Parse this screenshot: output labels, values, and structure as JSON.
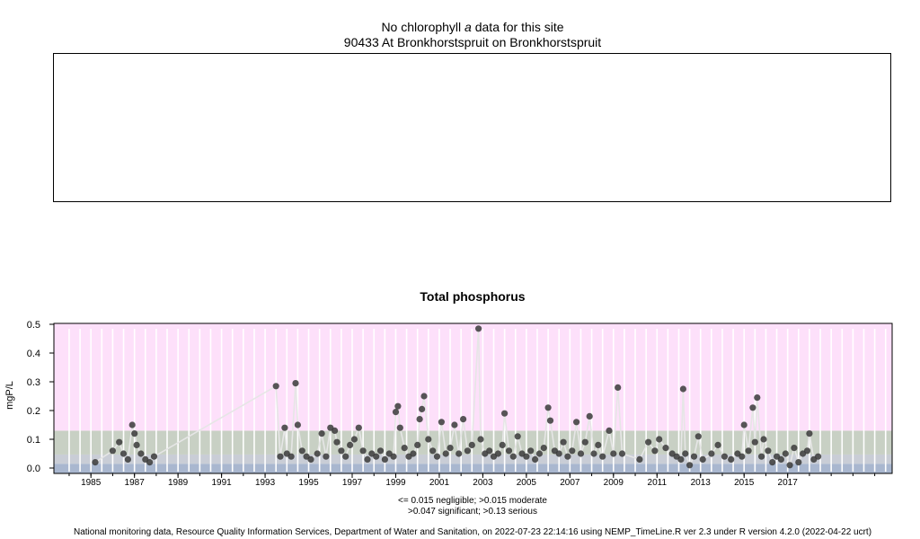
{
  "header": {
    "message_prefix": "No chlorophyll",
    "message_italic": "a",
    "message_suffix": " data for this site",
    "site": "90433 At Bronkhorstspruit on Bronkhorstspruit"
  },
  "chart_data": {
    "type": "scatter",
    "title": "Total phosphorus",
    "ylabel": "mgP/L",
    "xlabel": "",
    "ylim": [
      0,
      0.5
    ],
    "xlim": [
      1983.3,
      2021.8
    ],
    "yticks": [
      "0.0",
      "0.1",
      "0.2",
      "0.3",
      "0.4",
      "0.5"
    ],
    "xticks": [
      "1985",
      "1987",
      "1989",
      "1991",
      "1993",
      "1995",
      "1997",
      "1999",
      "2001",
      "2003",
      "2005",
      "2007",
      "2009",
      "2011",
      "2013",
      "2015",
      "2017"
    ],
    "bands": [
      {
        "name": "negligible",
        "from": 0,
        "to": 0.015,
        "color": "#a9b7cf"
      },
      {
        "name": "moderate",
        "from": 0.015,
        "to": 0.047,
        "color": "#c9cdd6"
      },
      {
        "name": "significant",
        "from": 0.047,
        "to": 0.13,
        "color": "#c8d0c4"
      },
      {
        "name": "serious",
        "from": 0.13,
        "to": 0.5,
        "color": "#fde0fa"
      }
    ],
    "series": [
      {
        "points": [
          [
            1985.2,
            0.02
          ],
          [
            1986.0,
            0.06
          ],
          [
            1986.3,
            0.09
          ],
          [
            1986.5,
            0.05
          ],
          [
            1986.7,
            0.03
          ],
          [
            1986.9,
            0.15
          ],
          [
            1987.0,
            0.12
          ],
          [
            1987.1,
            0.08
          ],
          [
            1987.3,
            0.05
          ],
          [
            1987.5,
            0.03
          ],
          [
            1987.7,
            0.02
          ],
          [
            1987.9,
            0.04
          ],
          [
            1993.5,
            0.285
          ],
          [
            1993.7,
            0.04
          ],
          [
            1993.9,
            0.14
          ],
          [
            1994.0,
            0.05
          ],
          [
            1994.2,
            0.04
          ],
          [
            1994.4,
            0.295
          ],
          [
            1994.5,
            0.15
          ],
          [
            1994.7,
            0.06
          ],
          [
            1994.9,
            0.04
          ],
          [
            1995.1,
            0.03
          ],
          [
            1995.4,
            0.05
          ],
          [
            1995.6,
            0.12
          ],
          [
            1995.8,
            0.04
          ],
          [
            1996.0,
            0.14
          ],
          [
            1996.2,
            0.13
          ],
          [
            1996.3,
            0.09
          ],
          [
            1996.5,
            0.06
          ],
          [
            1996.7,
            0.04
          ],
          [
            1996.9,
            0.08
          ],
          [
            1997.1,
            0.1
          ],
          [
            1997.3,
            0.14
          ],
          [
            1997.5,
            0.06
          ],
          [
            1997.7,
            0.03
          ],
          [
            1997.9,
            0.05
          ],
          [
            1998.1,
            0.04
          ],
          [
            1998.3,
            0.06
          ],
          [
            1998.5,
            0.03
          ],
          [
            1998.7,
            0.05
          ],
          [
            1998.9,
            0.04
          ],
          [
            1999.0,
            0.195
          ],
          [
            1999.1,
            0.215
          ],
          [
            1999.2,
            0.14
          ],
          [
            1999.4,
            0.07
          ],
          [
            1999.6,
            0.04
          ],
          [
            1999.8,
            0.05
          ],
          [
            2000.0,
            0.08
          ],
          [
            2000.1,
            0.17
          ],
          [
            2000.2,
            0.205
          ],
          [
            2000.3,
            0.25
          ],
          [
            2000.5,
            0.1
          ],
          [
            2000.7,
            0.06
          ],
          [
            2000.9,
            0.04
          ],
          [
            2001.1,
            0.16
          ],
          [
            2001.3,
            0.05
          ],
          [
            2001.5,
            0.07
          ],
          [
            2001.7,
            0.15
          ],
          [
            2001.9,
            0.05
          ],
          [
            2002.1,
            0.17
          ],
          [
            2002.3,
            0.06
          ],
          [
            2002.5,
            0.08
          ],
          [
            2002.8,
            0.485
          ],
          [
            2002.9,
            0.1
          ],
          [
            2003.1,
            0.05
          ],
          [
            2003.3,
            0.06
          ],
          [
            2003.5,
            0.04
          ],
          [
            2003.7,
            0.05
          ],
          [
            2003.9,
            0.08
          ],
          [
            2004.0,
            0.19
          ],
          [
            2004.2,
            0.06
          ],
          [
            2004.4,
            0.04
          ],
          [
            2004.6,
            0.11
          ],
          [
            2004.8,
            0.05
          ],
          [
            2005.0,
            0.04
          ],
          [
            2005.2,
            0.06
          ],
          [
            2005.4,
            0.03
          ],
          [
            2005.6,
            0.05
          ],
          [
            2005.8,
            0.07
          ],
          [
            2006.0,
            0.21
          ],
          [
            2006.1,
            0.165
          ],
          [
            2006.3,
            0.06
          ],
          [
            2006.5,
            0.05
          ],
          [
            2006.7,
            0.09
          ],
          [
            2006.9,
            0.04
          ],
          [
            2007.1,
            0.06
          ],
          [
            2007.3,
            0.16
          ],
          [
            2007.5,
            0.05
          ],
          [
            2007.7,
            0.09
          ],
          [
            2007.9,
            0.18
          ],
          [
            2008.1,
            0.05
          ],
          [
            2008.3,
            0.08
          ],
          [
            2008.5,
            0.04
          ],
          [
            2008.8,
            0.13
          ],
          [
            2009.0,
            0.05
          ],
          [
            2009.2,
            0.28
          ],
          [
            2009.4,
            0.05
          ],
          [
            2010.2,
            0.03
          ],
          [
            2010.6,
            0.09
          ],
          [
            2010.9,
            0.06
          ],
          [
            2011.1,
            0.1
          ],
          [
            2011.4,
            0.07
          ],
          [
            2011.7,
            0.05
          ],
          [
            2011.9,
            0.04
          ],
          [
            2012.1,
            0.03
          ],
          [
            2012.2,
            0.275
          ],
          [
            2012.3,
            0.05
          ],
          [
            2012.5,
            0.01
          ],
          [
            2012.7,
            0.04
          ],
          [
            2012.9,
            0.11
          ],
          [
            2013.1,
            0.03
          ],
          [
            2013.5,
            0.05
          ],
          [
            2013.8,
            0.08
          ],
          [
            2014.1,
            0.04
          ],
          [
            2014.4,
            0.03
          ],
          [
            2014.7,
            0.05
          ],
          [
            2014.9,
            0.04
          ],
          [
            2015.0,
            0.15
          ],
          [
            2015.2,
            0.06
          ],
          [
            2015.4,
            0.21
          ],
          [
            2015.5,
            0.09
          ],
          [
            2015.6,
            0.245
          ],
          [
            2015.8,
            0.04
          ],
          [
            2015.9,
            0.1
          ],
          [
            2016.1,
            0.06
          ],
          [
            2016.3,
            0.02
          ],
          [
            2016.5,
            0.04
          ],
          [
            2016.7,
            0.03
          ],
          [
            2016.9,
            0.05
          ],
          [
            2017.1,
            0.01
          ],
          [
            2017.3,
            0.07
          ],
          [
            2017.5,
            0.02
          ],
          [
            2017.7,
            0.05
          ],
          [
            2017.9,
            0.06
          ],
          [
            2018.0,
            0.12
          ],
          [
            2018.2,
            0.03
          ],
          [
            2018.4,
            0.04
          ]
        ]
      }
    ]
  },
  "legend": {
    "line1": "<= 0.015 negligible; >0.015 moderate",
    "line2": ">0.047 significant; >0.13 serious"
  },
  "footer": "National monitoring data, Resource Quality Information Services, Department of Water and Sanitation, on 2022-07-23 22:14:16 using NEMP_TimeLine.R ver 2.3 under R version 4.2.0 (2022-04-22 ucrt)"
}
